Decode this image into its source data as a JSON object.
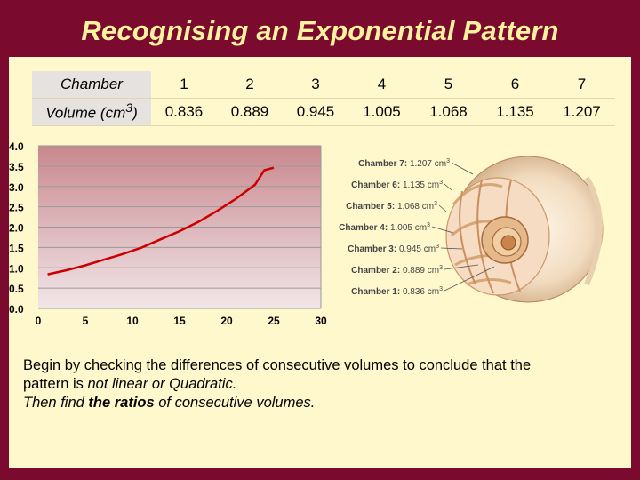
{
  "slide": {
    "title": "Recognising an Exponential Pattern"
  },
  "table": {
    "chamber_label": "Chamber",
    "volume_label_prefix": "Volume (cm",
    "volume_label_sup": "3",
    "volume_label_suffix": ")",
    "chambers": [
      "1",
      "2",
      "3",
      "4",
      "5",
      "6",
      "7"
    ],
    "volumes": [
      "0.836",
      "0.889",
      "0.945",
      "1.005",
      "1.068",
      "1.135",
      "1.207"
    ]
  },
  "chart_data": {
    "type": "line",
    "x_ticks": [
      "0",
      "5",
      "10",
      "15",
      "20",
      "25",
      "30"
    ],
    "y_ticks": [
      "0.0",
      "0.5",
      "1.0",
      "1.5",
      "2.0",
      "2.5",
      "3.0",
      "3.5",
      "4.0"
    ],
    "xlim": [
      0,
      30
    ],
    "ylim": [
      0,
      4
    ],
    "series": [
      {
        "x": [
          1,
          3,
          5,
          7,
          9,
          11,
          13,
          15,
          17,
          19,
          21,
          23,
          24,
          25
        ],
        "y": [
          0.84,
          0.94,
          1.06,
          1.2,
          1.34,
          1.5,
          1.7,
          1.9,
          2.13,
          2.4,
          2.7,
          3.04,
          3.4,
          3.46
        ]
      }
    ],
    "grid": true,
    "background_gradient": [
      "#c8888e",
      "#f2e6e8"
    ]
  },
  "shell": {
    "callouts": [
      {
        "chamber": "Chamber 7",
        "volume": "1.207 cm",
        "sup": "3"
      },
      {
        "chamber": "Chamber 6",
        "volume": "1.135 cm",
        "sup": "3"
      },
      {
        "chamber": "Chamber 5",
        "volume": "1.068 cm",
        "sup": "3"
      },
      {
        "chamber": "Chamber 4",
        "volume": "1.005 cm",
        "sup": "3"
      },
      {
        "chamber": "Chamber 3",
        "volume": "0.945 cm",
        "sup": "3"
      },
      {
        "chamber": "Chamber 2",
        "volume": "0.889 cm",
        "sup": "3"
      },
      {
        "chamber": "Chamber 1",
        "volume": "0.836 cm",
        "sup": "3"
      }
    ]
  },
  "caption": {
    "line1": "Begin by checking the differences of consecutive volumes to conclude that the",
    "line2_prefix": "pattern is ",
    "line2_em": "not linear or Quadratic.",
    "line3_prefix": "Then find ",
    "line3_bold": "the ratios",
    "line3_suffix": " of consecutive volumes."
  }
}
